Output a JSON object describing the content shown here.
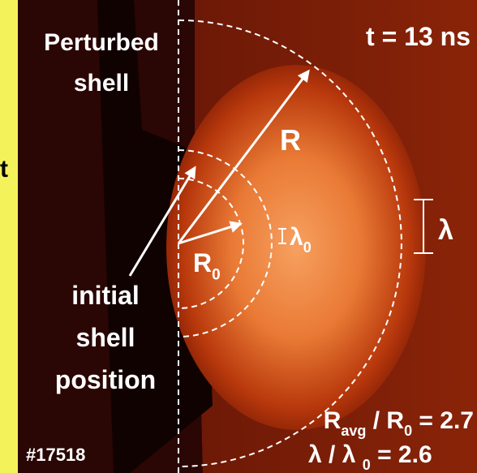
{
  "labels": {
    "edge_letter": "t",
    "perturbed_label": [
      "Perturbed",
      "shell"
    ],
    "time": "t = 13 ns",
    "radius": "R",
    "initial_radius": [
      "R",
      "0"
    ],
    "initial_wavelength": [
      "λ",
      "0"
    ],
    "wavelength": "λ",
    "initial_label": [
      "initial",
      "shell",
      "position"
    ],
    "shot": "#17518",
    "radius_ratio": [
      "R",
      "avg",
      " / R",
      "0",
      " = 2.7"
    ],
    "wavelength_ratio": [
      "λ / λ ",
      "0",
      " = 2.6"
    ]
  }
}
